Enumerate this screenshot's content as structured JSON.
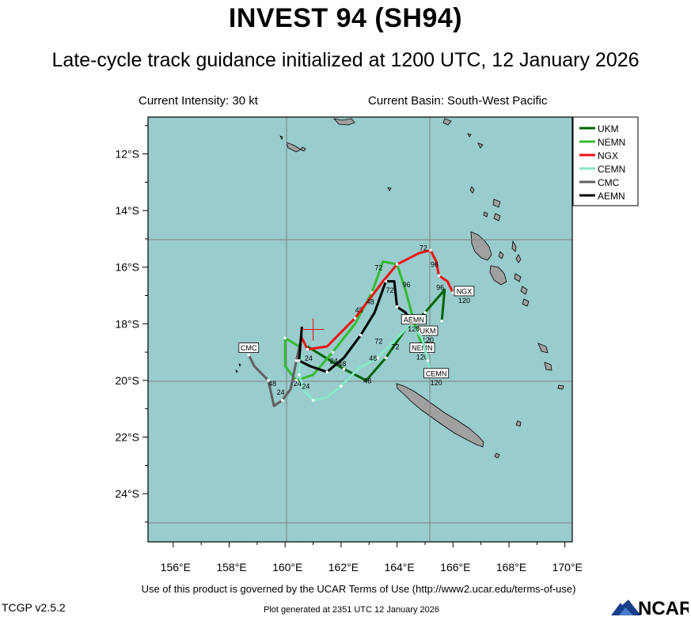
{
  "title": "INVEST 94 (SH94)",
  "subtitle": "Late-cycle track guidance initialized at 1200 UTC, 12 January 2026",
  "current_intensity": "Current Intensity: 30 kt",
  "current_basin": "Current Basin: South-West Pacific",
  "terms": "Use of this product is governed by the UCAR Terms of Use (http://www2.ucar.edu/terms-of-use)",
  "version": "TCGP v2.5.2",
  "generated": "Plot generated at 2351 UTC   12 January 2026",
  "logo_text": "NCAR",
  "colors": {
    "ocean": "#99cccc",
    "land": "#a0a0a0",
    "UKM": "#006400",
    "NEMN": "#33bb33",
    "NGX": "#ee1111",
    "CEMN": "#88e8c8",
    "CMC": "#606060",
    "AEMN": "#000000"
  },
  "map": {
    "lat_ticks": [
      "12°S",
      "14°S",
      "16°S",
      "18°S",
      "20°S",
      "22°S",
      "24°S"
    ],
    "lon_ticks": [
      "156°E",
      "158°E",
      "160°E",
      "162°E",
      "164°E",
      "166°E",
      "168°E",
      "170°E"
    ],
    "initial_position": {
      "lon": 161.0,
      "lat": -18.2
    }
  },
  "legend": [
    "UKM",
    "NEMN",
    "NGX",
    "CEMN",
    "CMC",
    "AEMN"
  ],
  "tracks": [
    {
      "model": "UKM",
      "points": [
        [
          160.8,
          -18.8
        ],
        [
          162.1,
          -19.6
        ],
        [
          162.9,
          -20.0
        ],
        [
          163.6,
          -19.2
        ],
        [
          164.3,
          -18.2
        ],
        [
          165.0,
          -17.6
        ],
        [
          165.7,
          -16.8
        ],
        [
          165.6,
          -17.9
        ]
      ],
      "hour_labels": [
        {
          "text": "24",
          "lon": 161.6,
          "lat": -19.4
        },
        {
          "text": "48",
          "lon": 162.8,
          "lat": -20.1
        },
        {
          "text": "72",
          "lon": 163.2,
          "lat": -18.7
        },
        {
          "text": "96",
          "lon": 165.4,
          "lat": -16.8
        }
      ],
      "end_label": {
        "text": "UKM",
        "lon": 165.1,
        "lat": -18.3
      },
      "end_hour": "120"
    },
    {
      "model": "NEMN",
      "points": [
        [
          160.5,
          -18.8
        ],
        [
          160.0,
          -18.5
        ],
        [
          160.0,
          -19.5
        ],
        [
          160.4,
          -20.0
        ],
        [
          161.0,
          -19.8
        ],
        [
          161.7,
          -19.0
        ],
        [
          162.5,
          -18.0
        ],
        [
          163.1,
          -16.9
        ],
        [
          163.5,
          -15.8
        ],
        [
          164.0,
          -15.9
        ],
        [
          164.3,
          -16.8
        ],
        [
          164.6,
          -17.9
        ],
        [
          164.9,
          -18.8
        ],
        [
          165.2,
          -19.0
        ]
      ],
      "hour_labels": [
        {
          "text": "24",
          "lon": 160.3,
          "lat": -20.2
        },
        {
          "text": "48",
          "lon": 162.5,
          "lat": -17.6
        },
        {
          "text": "72",
          "lon": 163.2,
          "lat": -16.1
        },
        {
          "text": "96",
          "lon": 164.7,
          "lat": -17.9
        }
      ],
      "end_label": {
        "text": "NEMN",
        "lon": 164.9,
        "lat": -18.9
      },
      "end_hour": "120"
    },
    {
      "model": "NGX",
      "points": [
        [
          160.6,
          -18.5
        ],
        [
          160.8,
          -18.9
        ],
        [
          161.5,
          -18.8
        ],
        [
          162.5,
          -17.8
        ],
        [
          163.5,
          -16.5
        ],
        [
          164.0,
          -15.9
        ],
        [
          164.8,
          -15.5
        ],
        [
          165.2,
          -15.4
        ],
        [
          165.4,
          -15.8
        ],
        [
          165.5,
          -16.3
        ],
        [
          165.8,
          -16.5
        ],
        [
          166.0,
          -16.9
        ]
      ],
      "hour_labels": [
        {
          "text": "48",
          "lon": 162.9,
          "lat": -17.3
        },
        {
          "text": "72",
          "lon": 164.8,
          "lat": -15.4
        },
        {
          "text": "96",
          "lon": 165.2,
          "lat": -16.0
        }
      ],
      "end_label": {
        "text": "NGX",
        "lon": 166.4,
        "lat": -16.9
      },
      "end_hour": "120"
    },
    {
      "model": "CEMN",
      "points": [
        [
          160.6,
          -19.1
        ],
        [
          160.5,
          -19.8
        ],
        [
          160.7,
          -20.4
        ],
        [
          161.0,
          -20.7
        ],
        [
          161.5,
          -20.6
        ],
        [
          162.0,
          -20.2
        ],
        [
          162.6,
          -19.6
        ],
        [
          163.3,
          -19.2
        ],
        [
          163.9,
          -18.6
        ],
        [
          164.5,
          -18.0
        ],
        [
          164.9,
          -18.5
        ],
        [
          165.1,
          -19.3
        ],
        [
          165.2,
          -19.8
        ]
      ],
      "hour_labels": [
        {
          "text": "24",
          "lon": 160.6,
          "lat": -20.3
        },
        {
          "text": "48",
          "lon": 163.0,
          "lat": -19.3
        },
        {
          "text": "72",
          "lon": 163.8,
          "lat": -18.9
        }
      ],
      "end_label": {
        "text": "CEMN",
        "lon": 165.4,
        "lat": -19.8
      },
      "end_hour": "120"
    },
    {
      "model": "CMC",
      "points": [
        [
          160.6,
          -18.4
        ],
        [
          160.4,
          -19.3
        ],
        [
          160.2,
          -20.3
        ],
        [
          159.9,
          -20.7
        ],
        [
          159.6,
          -20.9
        ],
        [
          159.4,
          -20.0
        ],
        [
          158.9,
          -19.5
        ],
        [
          158.7,
          -19.1
        ]
      ],
      "hour_labels": [
        {
          "text": "24",
          "lon": 159.7,
          "lat": -20.5
        },
        {
          "text": "48",
          "lon": 159.4,
          "lat": -20.2
        }
      ],
      "end_label": {
        "text": "CMC",
        "lon": 158.7,
        "lat": -18.9
      },
      "end_hour": ""
    },
    {
      "model": "AEMN",
      "points": [
        [
          160.6,
          -18.1
        ],
        [
          160.5,
          -19.3
        ],
        [
          160.9,
          -19.5
        ],
        [
          161.5,
          -19.7
        ],
        [
          162.1,
          -19.2
        ],
        [
          162.7,
          -18.4
        ],
        [
          163.2,
          -17.6
        ],
        [
          163.6,
          -16.5
        ],
        [
          163.9,
          -16.5
        ],
        [
          164.0,
          -17.4
        ],
        [
          164.3,
          -17.6
        ],
        [
          164.5,
          -17.9
        ]
      ],
      "hour_labels": [
        {
          "text": "24",
          "lon": 160.7,
          "lat": -19.3
        },
        {
          "text": "48",
          "lon": 161.9,
          "lat": -19.5
        },
        {
          "text": "72",
          "lon": 163.6,
          "lat": -16.9
        },
        {
          "text": "96",
          "lon": 164.2,
          "lat": -16.7
        }
      ],
      "end_label": {
        "text": "AEMN",
        "lon": 164.6,
        "lat": -17.9
      },
      "end_hour": "120"
    }
  ]
}
